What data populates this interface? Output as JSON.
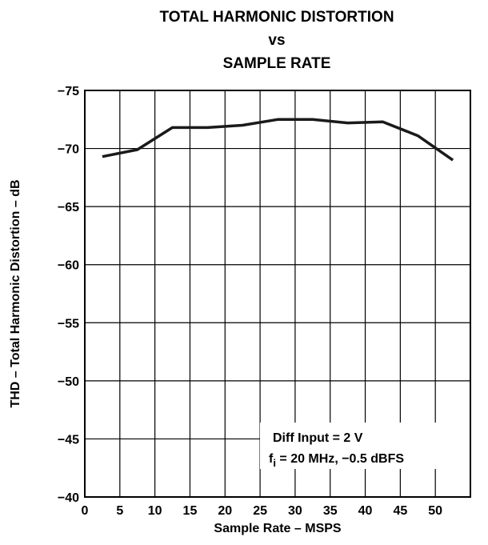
{
  "chart_data": {
    "type": "line",
    "title_lines": [
      "TOTAL HARMONIC DISTORTION",
      "vs",
      "SAMPLE RATE"
    ],
    "xlabel": "Sample Rate – MSPS",
    "ylabel": "THD – Total Harmonic Distortion – dB",
    "xlim": [
      0,
      55
    ],
    "ylim": [
      -40,
      -75
    ],
    "x_ticks": [
      0,
      5,
      10,
      15,
      20,
      25,
      30,
      35,
      40,
      45,
      50
    ],
    "x_tick_labels": [
      "0",
      "5",
      "10",
      "15",
      "20",
      "25",
      "30",
      "35",
      "40",
      "45",
      "50"
    ],
    "y_ticks": [
      -75,
      -70,
      -65,
      -60,
      -55,
      -50,
      -45,
      -40
    ],
    "y_tick_labels": [
      "−75",
      "−70",
      "−65",
      "−60",
      "−55",
      "−50",
      "−45",
      "−40"
    ],
    "grid": true,
    "series": [
      {
        "x": [
          2.5,
          7.5,
          12.5,
          17.5,
          22.5,
          27.5,
          32.5,
          37.5,
          42.5,
          47.5,
          52.5
        ],
        "y": [
          -69.3,
          -69.9,
          -71.8,
          -71.8,
          -72.0,
          -72.5,
          -72.5,
          -72.2,
          -72.3,
          -71.1,
          -69.0
        ],
        "color": "#1a1a1a"
      }
    ],
    "annotation": {
      "line1": "Diff Input = 2 V",
      "line2_prefix": "f",
      "line2_sub": "i",
      "line2_rest": " = 20 MHz, −0.5 dBFS"
    }
  }
}
